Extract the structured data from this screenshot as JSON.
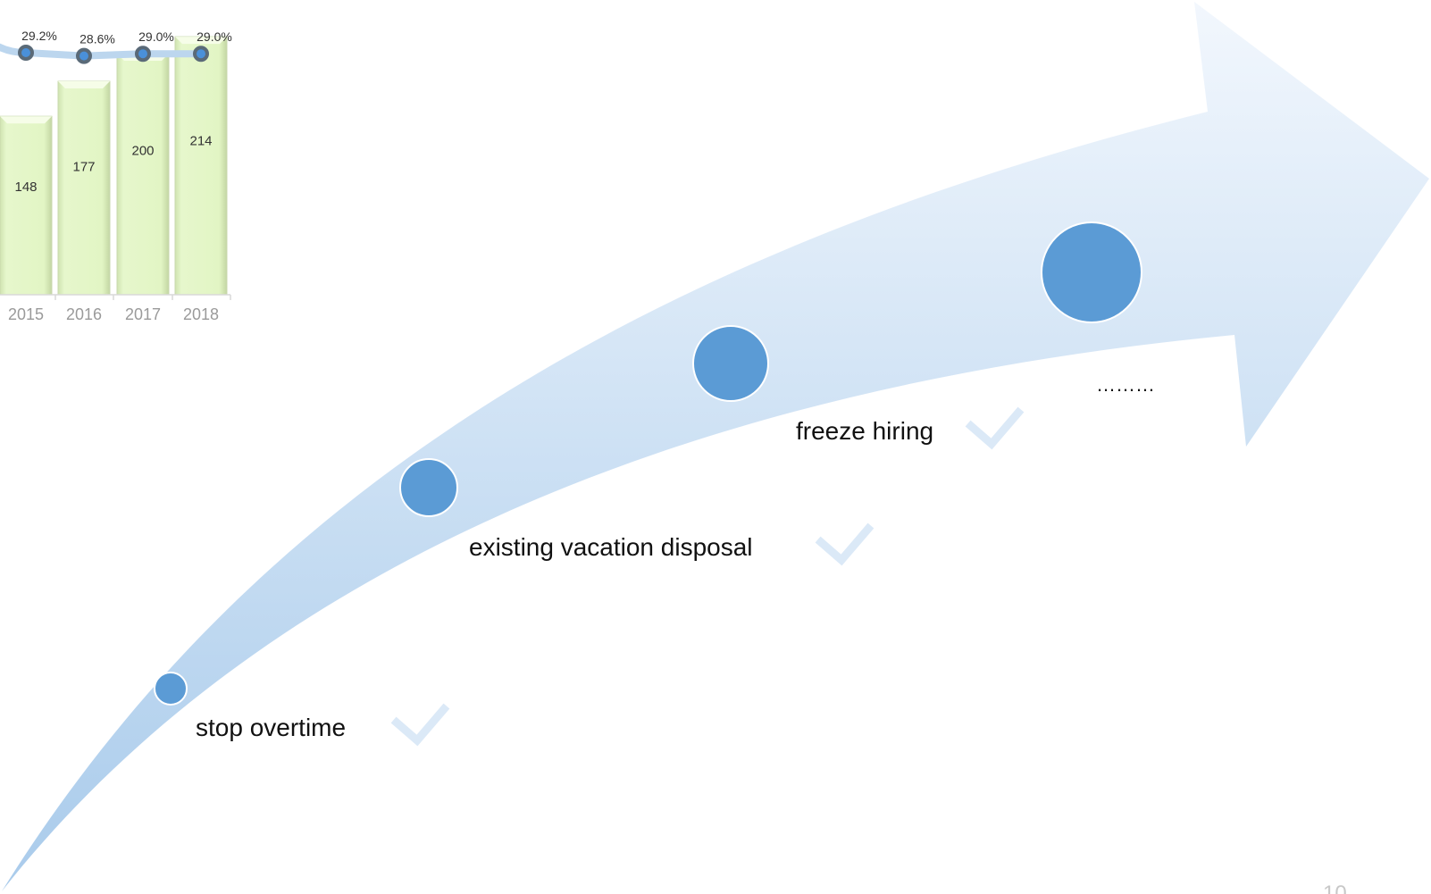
{
  "chart_data": {
    "type": "bar",
    "categories": [
      "2015",
      "2016",
      "2017",
      "2018"
    ],
    "series": [
      {
        "values": [
          148,
          177,
          200,
          214
        ]
      },
      {
        "values": [
          29.2,
          28.6,
          29.0,
          29.0
        ]
      }
    ],
    "bar_labels": [
      "148",
      "177",
      "200",
      "214"
    ],
    "line_labels": [
      "29.2%",
      "28.6%",
      "29.0%",
      "29.0%"
    ],
    "bar_color": "#e2f5c4",
    "line_color": "#bcd6ee",
    "marker_color": "#5a6a78"
  },
  "diagram": {
    "arrow_color_top": "#f2f7fd",
    "arrow_color_bottom": "#a9cbeb",
    "node_color": "#5b9bd5",
    "check_color": "#dbe9f7",
    "steps": [
      {
        "text": "stop overtime"
      },
      {
        "text": "existing vacation disposal"
      },
      {
        "text": "freeze hiring"
      },
      {
        "text": "………"
      }
    ]
  },
  "page_number": "10"
}
